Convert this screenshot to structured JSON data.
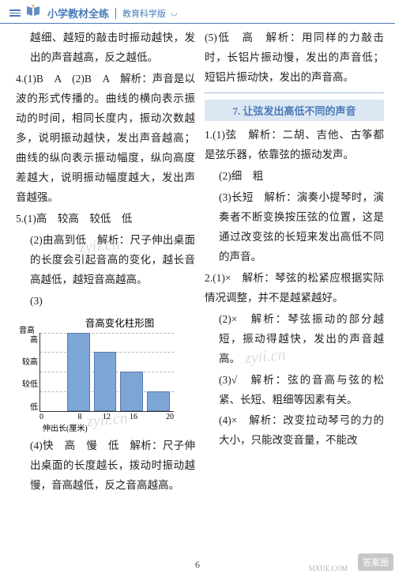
{
  "header": {
    "title": "小学教材全练",
    "sub": "教育科学版"
  },
  "left": {
    "p1": "越细、越短的敲击时振动越快，发出的声音越高，反之越低。",
    "p2_num": "4.",
    "p2": "(1)B　A　(2)B　A　解析：声音是以波的形式传播的。曲线的横向表示振动的时间，相同长度内，振动次数越多，说明振动越快，发出声音越高；曲线的纵向表示振动幅度，纵向高度差越大，说明振动幅度越大，发出声音越强。",
    "p3_num": "5.",
    "p3": "(1)高　较高　较低　低",
    "p4": "(2)由高到低　解析：尺子伸出桌面的长度会引起音高的变化，越长音高越低，越短音高越高。",
    "p5": "(3)",
    "chart_title": "音高变化柱形图",
    "p6": "(4)快　高　慢　低　解析：尺子伸出桌面的长度越长，拨动时振动越慢，音高越低，反之音高越高。"
  },
  "right": {
    "p1": "(5)低　高　解析：用同样的力敲击时，长铝片振动慢，发出的声音低；短铝片振动快，发出的声音高。",
    "section_title": "7. 让弦发出高低不同的声音",
    "p2_num": "1.",
    "p2": "(1)弦　解析：二胡、吉他、古筝都是弦乐器，依靠弦的振动发声。",
    "p3": "(2)细　粗",
    "p4": "(3)长短　解析：演奏小提琴时，演奏者不断变换按压弦的位置，这是通过改变弦的长短来发出高低不同的声音。",
    "p5_num": "2.",
    "p5": "(1)×　解析：琴弦的松紧应根据实际情况调整，并不是越紧越好。",
    "p6": "(2)×　解析：琴弦振动的部分越短，振动得越快，发出的声音越高。",
    "p7": "(3)√　解析：弦的音高与弦的松紧、长短、粗细等因素有关。",
    "p8": "(4)×　解析：改变拉动琴弓的力的大小，只能改变音量，不能改"
  },
  "chart": {
    "y_labels": [
      "高",
      "较高",
      "较低",
      "低"
    ],
    "x_values": [
      0,
      8,
      12,
      16,
      20
    ],
    "x_label": "伸出长(厘米)",
    "y_label": "音高",
    "bars": [
      {
        "x_pct": 20,
        "h_pct": 100,
        "w_pct": 17
      },
      {
        "x_pct": 40,
        "h_pct": 75,
        "w_pct": 17
      },
      {
        "x_pct": 60,
        "h_pct": 50,
        "w_pct": 17
      },
      {
        "x_pct": 80,
        "h_pct": 25,
        "w_pct": 17
      }
    ],
    "bar_color": "#7da5d6",
    "bar_border": "#5a7ca8",
    "grid_color": "#bbbbbb"
  },
  "page_number": "6",
  "watermarks": {
    "wm": "zyii.cn",
    "corner_badge": "答案图",
    "corner_sub": "MXUE.COM"
  }
}
